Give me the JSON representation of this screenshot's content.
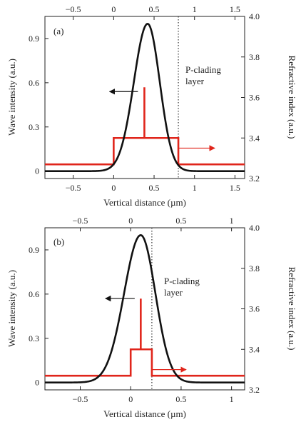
{
  "colors": {
    "intensity": "#111111",
    "refractive_index": "#e0251b"
  },
  "chart_data": [
    {
      "type": "line",
      "panel_label": "(a)",
      "xlabel": "Vertical distance (µm)",
      "ylabel_left": "Wave intensity (a.u.)",
      "ylabel_right": "Refractive index (a.u.)",
      "xlim": [
        -0.85,
        1.62
      ],
      "ylim_left": [
        -0.05,
        1.05
      ],
      "ylim_right": [
        3.2,
        4.0
      ],
      "xticks_bottom": [
        -0.5,
        0,
        0.5,
        1,
        1.5
      ],
      "xticks_top": [
        -0.5,
        0,
        0.5,
        1,
        1.5
      ],
      "yticks_left": [
        0,
        0.3,
        0.6,
        0.9
      ],
      "yticks_right": [
        3.2,
        3.4,
        3.6,
        3.8,
        4.0
      ],
      "annotation": [
        "P-clading",
        "layer"
      ],
      "divider_x": 0.8,
      "intensity_peak": {
        "x": 0.42,
        "y": 1.0,
        "sigma_left": 0.17,
        "sigma_right": 0.15
      },
      "refractive_index_profile": {
        "x": [
          -0.85,
          0.0,
          0.0,
          0.38,
          0.38,
          0.38,
          0.38,
          0.8,
          0.8,
          1.62
        ],
        "y": [
          3.27,
          3.27,
          3.4,
          3.4,
          3.65,
          3.4,
          3.4,
          3.4,
          3.27,
          3.27
        ]
      },
      "arrow_left": {
        "x_from": 0.3,
        "x_to": -0.05,
        "y": 0.54
      },
      "arrow_right": {
        "x_from": 0.8,
        "x_to": 1.25,
        "y": 3.35
      },
      "grid": false
    },
    {
      "type": "line",
      "panel_label": "(b)",
      "xlabel": "Vertical distance (µm)",
      "ylabel_left": "Wave intensity (a.u.)",
      "ylabel_right": "Refractive index (a.u.)",
      "xlim": [
        -0.85,
        1.13
      ],
      "ylim_left": [
        -0.05,
        1.05
      ],
      "ylim_right": [
        3.2,
        4.0
      ],
      "xticks_bottom": [
        -0.5,
        0,
        0.5,
        1
      ],
      "xticks_top": [
        -0.5,
        0,
        0.5,
        1
      ],
      "yticks_left": [
        0,
        0.3,
        0.6,
        0.9
      ],
      "yticks_right": [
        3.2,
        3.4,
        3.6,
        3.8,
        4.0
      ],
      "annotation": [
        "P-clading",
        "layer"
      ],
      "divider_x": 0.21,
      "intensity_peak": {
        "x": 0.1,
        "y": 1.0,
        "sigma_left": 0.165,
        "sigma_right": 0.145
      },
      "refractive_index_profile": {
        "x": [
          -0.85,
          0.0,
          0.0,
          0.1,
          0.1,
          0.1,
          0.1,
          0.21,
          0.21,
          1.13
        ],
        "y": [
          3.27,
          3.27,
          3.4,
          3.4,
          3.65,
          3.4,
          3.4,
          3.4,
          3.27,
          3.27
        ]
      },
      "arrow_left": {
        "x_from": 0.04,
        "x_to": -0.25,
        "y": 0.57
      },
      "arrow_right": {
        "x_from": 0.21,
        "x_to": 0.55,
        "y": 3.3
      },
      "grid": false
    }
  ]
}
